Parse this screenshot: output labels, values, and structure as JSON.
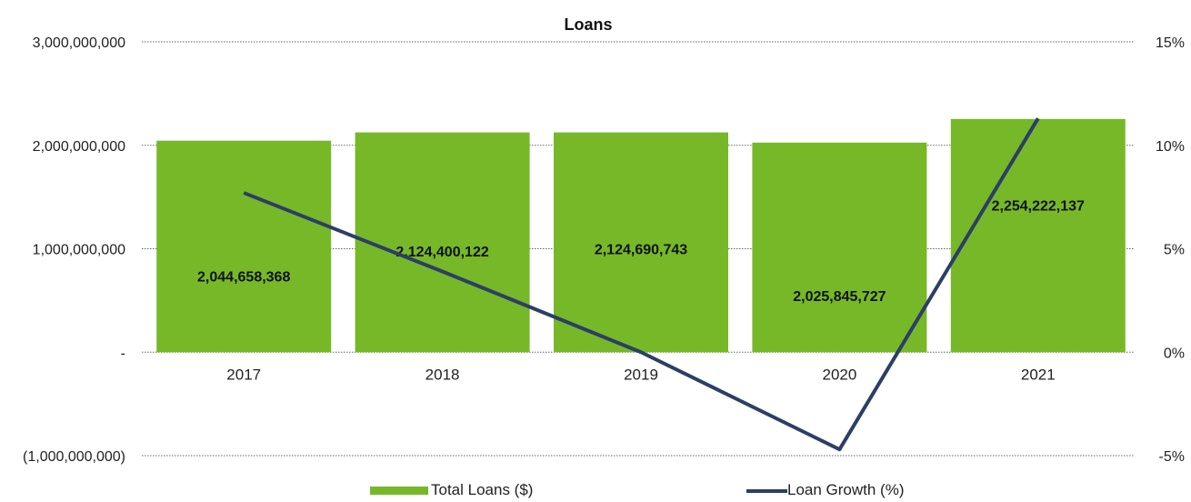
{
  "chart_data": {
    "type": "bar",
    "title": "Loans",
    "categories": [
      "2017",
      "2018",
      "2019",
      "2020",
      "2021"
    ],
    "series": [
      {
        "name": "Total Loans ($)",
        "type": "bar",
        "axis": "left",
        "values": [
          2044658368,
          2124400122,
          2124690743,
          2025845727,
          2254222137
        ],
        "labels": [
          "2,044,658,368",
          "2,124,400,122",
          "2,124,690,743",
          "2,025,845,727",
          "2,254,222,137"
        ],
        "color": "#77b829"
      },
      {
        "name": "Loan Growth (%)",
        "type": "line",
        "axis": "right",
        "values": [
          7.7,
          3.9,
          0.0,
          -4.7,
          11.3
        ],
        "color": "#2b3f66"
      }
    ],
    "y_left": {
      "ylim": [
        -1000000000,
        3000000000
      ],
      "ticks": [
        3000000000,
        2000000000,
        1000000000,
        0,
        -1000000000
      ],
      "tick_labels": [
        "3,000,000,000",
        "2,000,000,000",
        "1,000,000,000",
        "-",
        "(1,000,000,000)"
      ]
    },
    "y_right": {
      "ylim": [
        -5,
        15
      ],
      "ticks": [
        15,
        10,
        5,
        0,
        -5
      ],
      "tick_labels": [
        "15%",
        "10%",
        "5%",
        "0%",
        "-5%"
      ]
    },
    "grid": true,
    "legend_position": "bottom"
  }
}
